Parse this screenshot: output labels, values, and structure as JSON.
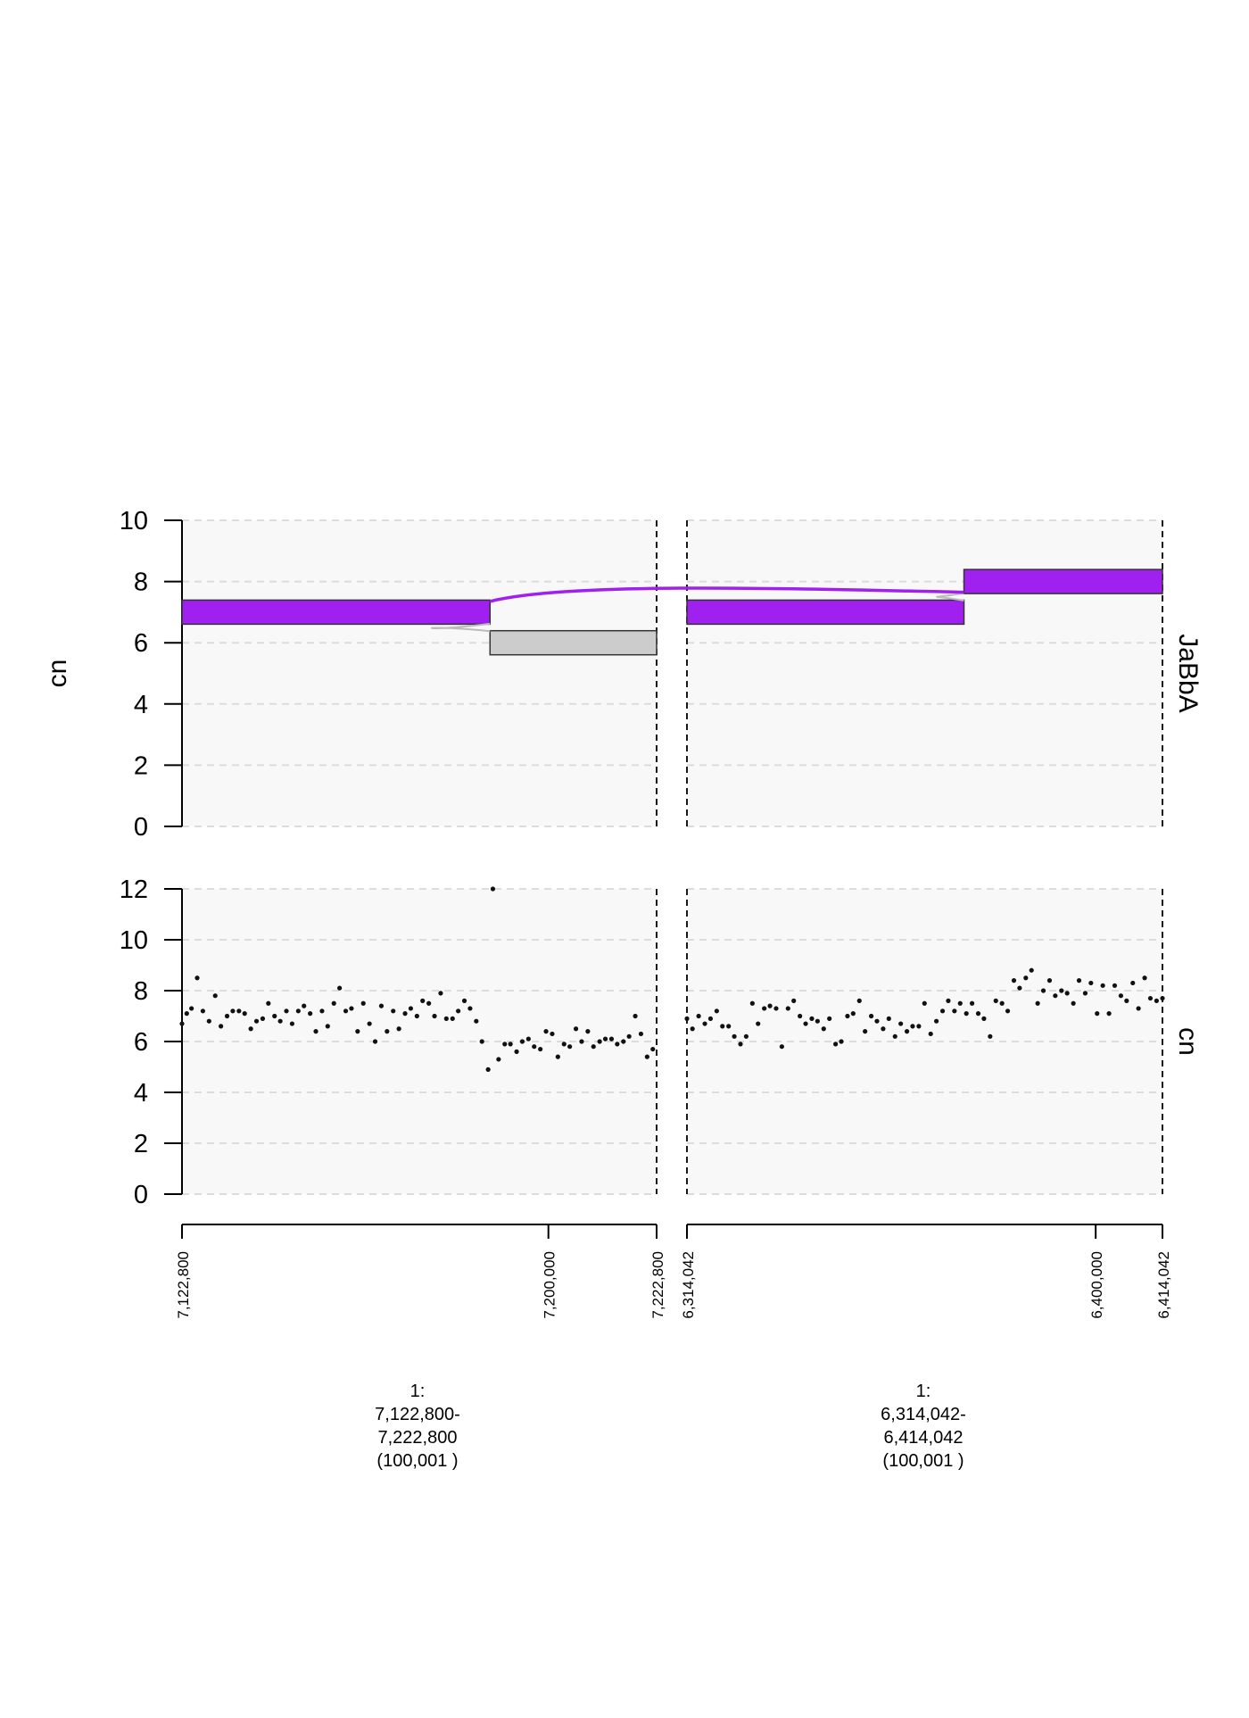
{
  "chart_data": {
    "type": "scatter",
    "tracks": [
      {
        "name": "JaBbA",
        "ylabel": "cn",
        "ylim": [
          0,
          10
        ],
        "yticks": [
          "0",
          "2",
          "4",
          "6",
          "8",
          "10"
        ],
        "grid": true,
        "segments": [
          {
            "window": 0,
            "start": 7122800,
            "end": 7187700,
            "y": 7,
            "color": "#a020f0"
          },
          {
            "window": 0,
            "start": 7187700,
            "end": 7222800,
            "y": 6,
            "color": "#cccccc"
          },
          {
            "window": 1,
            "start": 6314042,
            "end": 6372300,
            "y": 7,
            "color": "#a020f0"
          },
          {
            "window": 1,
            "start": 6372300,
            "end": 6414042,
            "y": 8,
            "color": "#a020f0"
          }
        ],
        "junction": {
          "from": {
            "window": 0,
            "pos": 7187700,
            "y": 7
          },
          "to": {
            "window": 1,
            "pos": 6372300,
            "y": 8
          },
          "color": "#a020f0"
        }
      },
      {
        "name": "cn",
        "ylabel": "",
        "ylim": [
          0,
          12
        ],
        "yticks": [
          "0",
          "2",
          "4",
          "6",
          "8",
          "10",
          "12"
        ],
        "grid": true,
        "points": [
          [
            [
              7122800,
              6.7
            ],
            [
              7123800,
              7.1
            ],
            [
              7124800,
              7.3
            ],
            [
              7126000,
              8.5
            ],
            [
              7127200,
              7.2
            ],
            [
              7128500,
              6.8
            ],
            [
              7129800,
              7.8
            ],
            [
              7131000,
              6.6
            ],
            [
              7132300,
              7.0
            ],
            [
              7133500,
              7.2
            ],
            [
              7134800,
              7.2
            ],
            [
              7136000,
              7.1
            ],
            [
              7137300,
              6.5
            ],
            [
              7138500,
              6.8
            ],
            [
              7139800,
              6.9
            ],
            [
              7141000,
              7.5
            ],
            [
              7142300,
              7.0
            ],
            [
              7143500,
              6.8
            ],
            [
              7144800,
              7.2
            ],
            [
              7146000,
              6.7
            ],
            [
              7147300,
              7.2
            ],
            [
              7148500,
              7.4
            ],
            [
              7149800,
              7.1
            ],
            [
              7151000,
              6.4
            ],
            [
              7152300,
              7.2
            ],
            [
              7153500,
              6.6
            ],
            [
              7154800,
              7.5
            ],
            [
              7156000,
              8.1
            ],
            [
              7157300,
              7.2
            ],
            [
              7158500,
              7.3
            ],
            [
              7159800,
              6.4
            ],
            [
              7161000,
              7.5
            ],
            [
              7162300,
              6.7
            ],
            [
              7163500,
              6.0
            ],
            [
              7164800,
              7.4
            ],
            [
              7166000,
              6.4
            ],
            [
              7167300,
              7.2
            ],
            [
              7168500,
              6.5
            ],
            [
              7169800,
              7.1
            ],
            [
              7171000,
              7.3
            ],
            [
              7172300,
              7.0
            ],
            [
              7173500,
              7.6
            ],
            [
              7174800,
              7.5
            ],
            [
              7176000,
              7.0
            ],
            [
              7177300,
              7.9
            ],
            [
              7178500,
              6.9
            ],
            [
              7179800,
              6.9
            ],
            [
              7181000,
              7.2
            ],
            [
              7182300,
              7.6
            ],
            [
              7183500,
              7.3
            ],
            [
              7184800,
              6.8
            ],
            [
              7186000,
              6.0
            ],
            [
              7187300,
              4.9
            ],
            [
              7188300,
              12.0
            ],
            [
              7189500,
              5.3
            ],
            [
              7190800,
              5.9
            ],
            [
              7192000,
              5.9
            ],
            [
              7193300,
              5.6
            ],
            [
              7194500,
              6.0
            ],
            [
              7195800,
              6.1
            ],
            [
              7197000,
              5.8
            ],
            [
              7198300,
              5.7
            ],
            [
              7199500,
              6.4
            ],
            [
              7200800,
              6.3
            ],
            [
              7202000,
              5.4
            ],
            [
              7203300,
              5.9
            ],
            [
              7204500,
              5.8
            ],
            [
              7205800,
              6.5
            ],
            [
              7207000,
              6.0
            ],
            [
              7208300,
              6.4
            ],
            [
              7209500,
              5.8
            ],
            [
              7210800,
              6.0
            ],
            [
              7212000,
              6.1
            ],
            [
              7213300,
              6.1
            ],
            [
              7214500,
              5.9
            ],
            [
              7215800,
              6.0
            ],
            [
              7217000,
              6.2
            ],
            [
              7218300,
              7.0
            ],
            [
              7219500,
              6.3
            ],
            [
              7220800,
              5.4
            ],
            [
              7222000,
              5.7
            ]
          ],
          [
            [
              6314042,
              6.9
            ],
            [
              6315200,
              6.5
            ],
            [
              6316500,
              7.0
            ],
            [
              6317800,
              6.7
            ],
            [
              6319000,
              6.9
            ],
            [
              6320300,
              7.2
            ],
            [
              6321500,
              6.6
            ],
            [
              6322800,
              6.6
            ],
            [
              6324000,
              6.2
            ],
            [
              6325300,
              5.9
            ],
            [
              6326500,
              6.2
            ],
            [
              6327800,
              7.5
            ],
            [
              6329000,
              6.7
            ],
            [
              6330300,
              7.3
            ],
            [
              6331500,
              7.4
            ],
            [
              6332800,
              7.3
            ],
            [
              6334000,
              5.8
            ],
            [
              6335300,
              7.3
            ],
            [
              6336500,
              7.6
            ],
            [
              6337800,
              7.0
            ],
            [
              6339000,
              6.7
            ],
            [
              6340300,
              6.9
            ],
            [
              6341500,
              6.8
            ],
            [
              6342800,
              6.5
            ],
            [
              6344000,
              6.9
            ],
            [
              6345300,
              5.9
            ],
            [
              6346500,
              6.0
            ],
            [
              6347800,
              7.0
            ],
            [
              6349000,
              7.1
            ],
            [
              6350300,
              7.6
            ],
            [
              6351500,
              6.4
            ],
            [
              6352800,
              7.0
            ],
            [
              6354000,
              6.8
            ],
            [
              6355300,
              6.5
            ],
            [
              6356500,
              6.9
            ],
            [
              6357800,
              6.2
            ],
            [
              6359000,
              6.7
            ],
            [
              6360300,
              6.4
            ],
            [
              6361500,
              6.6
            ],
            [
              6362800,
              6.6
            ],
            [
              6364000,
              7.5
            ],
            [
              6365300,
              6.3
            ],
            [
              6366500,
              6.8
            ],
            [
              6367800,
              7.2
            ],
            [
              6369000,
              7.6
            ],
            [
              6370300,
              7.2
            ],
            [
              6371500,
              7.5
            ],
            [
              6372800,
              7.1
            ],
            [
              6374000,
              7.5
            ],
            [
              6375300,
              7.1
            ],
            [
              6376500,
              6.9
            ],
            [
              6377800,
              6.2
            ],
            [
              6379000,
              7.6
            ],
            [
              6380300,
              7.5
            ],
            [
              6381500,
              7.2
            ],
            [
              6382800,
              8.4
            ],
            [
              6384000,
              8.1
            ],
            [
              6385300,
              8.5
            ],
            [
              6386500,
              8.8
            ],
            [
              6387800,
              7.5
            ],
            [
              6389000,
              8.0
            ],
            [
              6390300,
              8.4
            ],
            [
              6391500,
              7.8
            ],
            [
              6392800,
              8.0
            ],
            [
              6394000,
              7.9
            ],
            [
              6395300,
              7.5
            ],
            [
              6396500,
              8.4
            ],
            [
              6397800,
              7.9
            ],
            [
              6399000,
              8.3
            ],
            [
              6400300,
              7.1
            ],
            [
              6401500,
              8.2
            ],
            [
              6402800,
              7.1
            ],
            [
              6404000,
              8.2
            ],
            [
              6405300,
              7.8
            ],
            [
              6406500,
              7.6
            ],
            [
              6407800,
              8.3
            ],
            [
              6409000,
              7.3
            ],
            [
              6410300,
              8.5
            ],
            [
              6411500,
              7.7
            ],
            [
              6412800,
              7.6
            ],
            [
              6414042,
              7.7
            ]
          ]
        ]
      }
    ],
    "windows": [
      {
        "start": 7122800,
        "end": 7222800,
        "ticks": [
          {
            "pos": 7122800,
            "label": "7,122,800"
          },
          {
            "pos": 7200000,
            "label": "7,200,000"
          },
          {
            "pos": 7222800,
            "label": "7,222,800"
          }
        ]
      },
      {
        "start": 6314042,
        "end": 6414042,
        "ticks": [
          {
            "pos": 6314042,
            "label": "6,314,042"
          },
          {
            "pos": 6400000,
            "label": "6,400,000"
          },
          {
            "pos": 6414042,
            "label": "6,414,042"
          }
        ]
      }
    ]
  },
  "region_labels": [
    {
      "line1": "1:",
      "line2": "7,122,800-",
      "line3": "7,222,800",
      "line4": "(100,001 )"
    },
    {
      "line1": "1:",
      "line2": "6,314,042-",
      "line3": "6,414,042",
      "line4": "(100,001 )"
    }
  ]
}
